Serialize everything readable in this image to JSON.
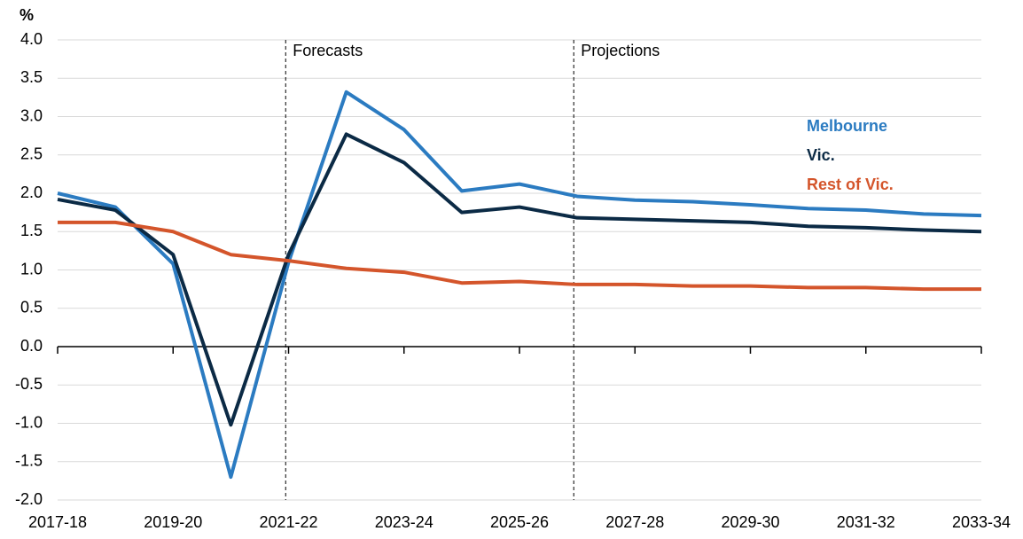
{
  "chart_data": {
    "type": "line",
    "y_unit": "%",
    "categories": [
      "2017-18",
      null,
      "2019-20",
      null,
      "2021-22",
      null,
      "2023-24",
      null,
      "2025-26",
      null,
      "2027-28",
      null,
      "2029-30",
      null,
      "2031-32",
      null,
      "2033-34"
    ],
    "series": [
      {
        "name": "Melbourne",
        "color": "#2b7bc1",
        "values": [
          2.0,
          1.82,
          1.08,
          -1.7,
          1.1,
          3.32,
          2.83,
          2.03,
          2.12,
          1.96,
          1.91,
          1.89,
          1.85,
          1.8,
          1.78,
          1.73,
          1.71
        ]
      },
      {
        "name": "Vic.",
        "color": "#0b2a45",
        "values": [
          1.92,
          1.78,
          1.2,
          -1.02,
          1.2,
          2.77,
          2.4,
          1.75,
          1.82,
          1.68,
          1.66,
          1.64,
          1.62,
          1.57,
          1.55,
          1.52,
          1.5
        ]
      },
      {
        "name": "Rest of Vic.",
        "color": "#d4552b",
        "values": [
          1.62,
          1.62,
          1.5,
          1.2,
          1.12,
          1.02,
          0.97,
          0.83,
          0.85,
          0.81,
          0.81,
          0.79,
          0.79,
          0.77,
          0.77,
          0.75,
          0.75
        ]
      }
    ],
    "annotations": [
      {
        "text": "Forecasts",
        "x": 3.95
      },
      {
        "text": "Projections",
        "x": 8.94
      }
    ],
    "ylim": [
      -2,
      4
    ],
    "yticks": [
      {
        "value": -2,
        "label": "-2.0"
      },
      -1.5,
      {
        "value": -1,
        "label": "-1.0"
      },
      -0.5,
      {
        "value": 0,
        "label": "0.0"
      },
      0.5,
      {
        "value": 1,
        "label": "1.0"
      },
      1.5,
      {
        "value": 2,
        "label": "2.0"
      },
      2.5,
      {
        "value": 3,
        "label": "3.0"
      },
      3.5,
      {
        "value": 4,
        "label": "4.0"
      }
    ],
    "grid": true
  }
}
